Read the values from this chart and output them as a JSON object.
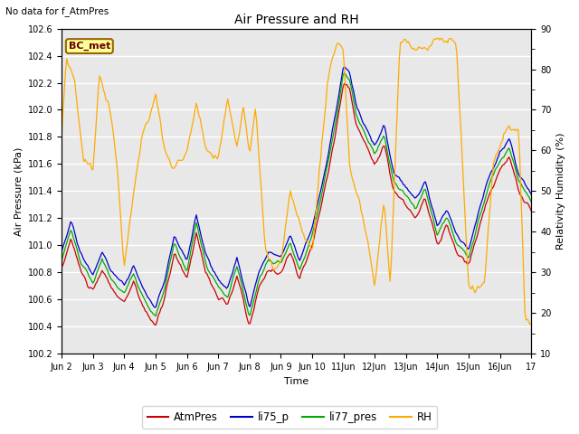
{
  "title": "Air Pressure and RH",
  "top_left_note": "No data for f_AtmPres",
  "xlabel": "Time",
  "ylabel_left": "Air Pressure (kPa)",
  "ylabel_right": "Relativity Humidity (%)",
  "ylim_left": [
    100.2,
    102.6
  ],
  "ylim_right": [
    10,
    90
  ],
  "yticks_left": [
    100.2,
    100.4,
    100.6,
    100.8,
    101.0,
    101.2,
    101.4,
    101.6,
    101.8,
    102.0,
    102.2,
    102.4,
    102.6
  ],
  "yticks_right_major": [
    10,
    20,
    30,
    40,
    50,
    60,
    70,
    80,
    90
  ],
  "yticks_right_minor": [
    15,
    25,
    35,
    45,
    55,
    65,
    75,
    85
  ],
  "xtick_labels": [
    "Jun 2",
    "Jun 3",
    "Jun 4",
    "Jun 5",
    "Jun 6",
    "Jun 7",
    "Jun 8",
    "Jun 9",
    "Jun 10",
    "11Jun",
    "12Jun",
    "13Jun",
    "14Jun",
    "15Jun",
    "16Jun",
    "17"
  ],
  "legend_items": [
    {
      "label": "AtmPres",
      "color": "#cc0000"
    },
    {
      "label": "li75_p",
      "color": "#0000cc"
    },
    {
      "label": "li77_pres",
      "color": "#00aa00"
    },
    {
      "label": "RH",
      "color": "#ffaa00"
    }
  ],
  "bc_met_face": "#ffff99",
  "bc_met_edge": "#996600",
  "bc_met_text": "#660000",
  "background_color": "#e8e8e8",
  "grid_color": "#ffffff",
  "fig_background": "#ffffff"
}
